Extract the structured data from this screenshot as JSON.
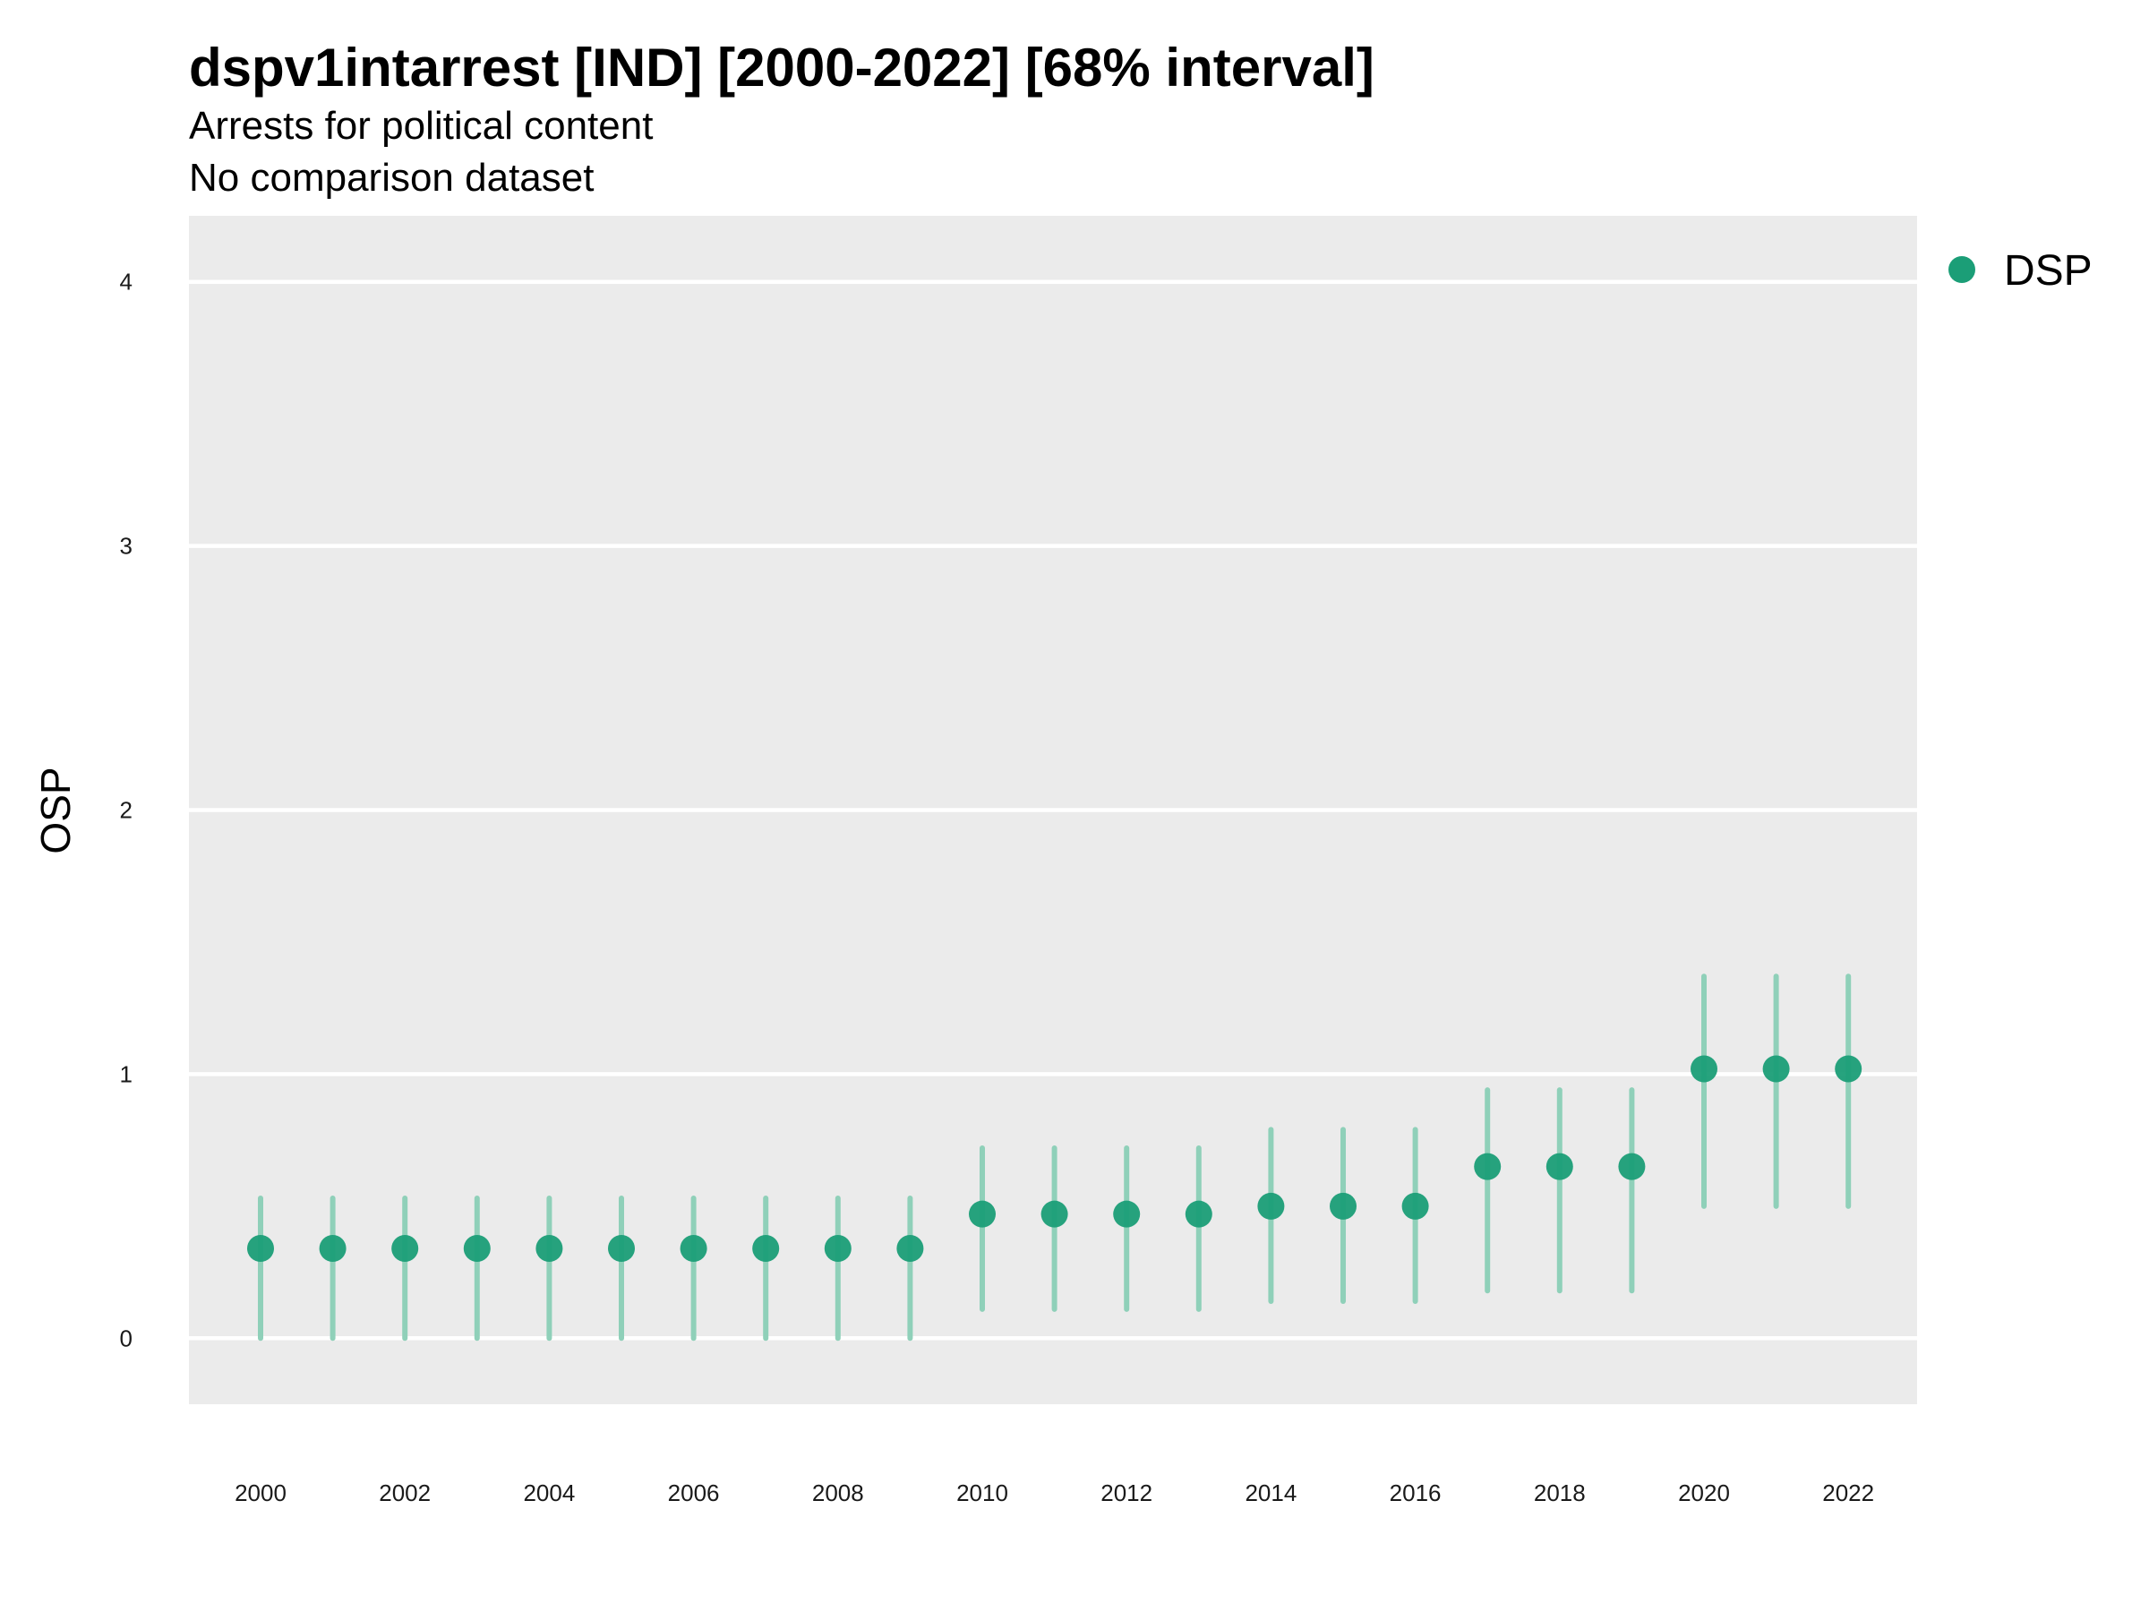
{
  "title": "dspv1intarrest [IND] [2000-2022] [68% interval]",
  "subtitle": "Arrests for political content",
  "caption": "No comparison dataset",
  "colors": {
    "panel": "#ebebeb",
    "gridline": "#ffffff",
    "point": "#1b9e77",
    "interval": "#8fd0b9"
  },
  "chart_data": {
    "type": "scatter",
    "xlabel": "",
    "ylabel": "OSP",
    "ylim": [
      -0.25,
      4.25
    ],
    "yticks": [
      0,
      1,
      2,
      3,
      4
    ],
    "xticks": [
      2000,
      2002,
      2004,
      2006,
      2008,
      2010,
      2012,
      2014,
      2016,
      2018,
      2020,
      2022
    ],
    "grid": true,
    "legend": {
      "position": "top-right",
      "entries": [
        "DSP"
      ]
    },
    "series": [
      {
        "name": "DSP",
        "x": [
          2000,
          2001,
          2002,
          2003,
          2004,
          2005,
          2006,
          2007,
          2008,
          2009,
          2010,
          2011,
          2012,
          2013,
          2014,
          2015,
          2016,
          2017,
          2018,
          2019,
          2020,
          2021,
          2022
        ],
        "y": [
          0.34,
          0.34,
          0.34,
          0.34,
          0.34,
          0.34,
          0.34,
          0.34,
          0.34,
          0.34,
          0.47,
          0.47,
          0.47,
          0.47,
          0.5,
          0.5,
          0.5,
          0.65,
          0.65,
          0.65,
          1.02,
          1.02,
          1.02
        ],
        "lower": [
          0.0,
          0.0,
          0.0,
          0.0,
          0.0,
          0.0,
          0.0,
          0.0,
          0.0,
          0.0,
          0.11,
          0.11,
          0.11,
          0.11,
          0.14,
          0.14,
          0.14,
          0.18,
          0.18,
          0.18,
          0.5,
          0.5,
          0.5
        ],
        "upper": [
          0.53,
          0.53,
          0.53,
          0.53,
          0.53,
          0.53,
          0.53,
          0.53,
          0.53,
          0.53,
          0.72,
          0.72,
          0.72,
          0.72,
          0.79,
          0.79,
          0.79,
          0.94,
          0.94,
          0.94,
          1.37,
          1.37,
          1.37
        ]
      }
    ]
  }
}
